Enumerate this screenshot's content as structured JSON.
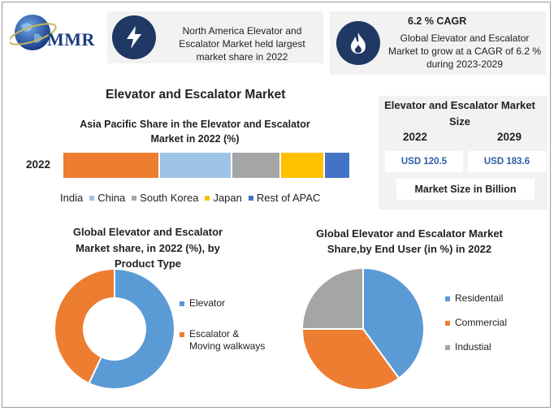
{
  "logo": {
    "brand": "MMR"
  },
  "cards": {
    "share": {
      "text": "North America Elevator and Escalator Market held largest market share in 2022"
    },
    "cagr": {
      "heading": "6.2 % CAGR",
      "text": "Global Elevator and Escalator Market to grow at a CAGR of 6.2 % during 2023-2029"
    }
  },
  "main_title": "Elevator and Escalator Market",
  "market_size": {
    "title": "Elevator and Escalator Market Size",
    "year1": "2022",
    "year2": "2029",
    "value1": "USD 120.5",
    "value2": "USD 183.6",
    "unit": "Market Size in Billion"
  },
  "colors": {
    "India": "#ed7d31",
    "China": "#9dc3e6",
    "South Korea": "#a5a5a5",
    "Japan": "#ffc000",
    "Rest of APAC": "#4472c4",
    "Elevator": "#5b9bd5",
    "Escalator": "#ed7d31",
    "Industial": "#a5a5a5"
  },
  "chart_data": [
    {
      "type": "bar",
      "orientation": "horizontal-stacked",
      "title": "Asia Pacific Share in the Elevator and Escalator Market in 2022 (%)",
      "categories": [
        "2022"
      ],
      "series": [
        {
          "name": "India",
          "values": [
            33.5
          ]
        },
        {
          "name": "China",
          "values": [
            25
          ]
        },
        {
          "name": "South Korea",
          "values": [
            17
          ]
        },
        {
          "name": "Japan",
          "values": [
            15
          ]
        },
        {
          "name": "Rest of APAC",
          "values": [
            8.5
          ]
        }
      ],
      "legend": "bottom"
    },
    {
      "type": "pie",
      "style": "donut",
      "title": "Global Elevator and Escalator Market share, in 2022 (%), by Product Type",
      "labels": [
        "Elevator",
        "Escalator & Moving walkways"
      ],
      "values": [
        57,
        43
      ],
      "legend": "right"
    },
    {
      "type": "pie",
      "title": "Global Elevator and Escalator Market Share,by End User (in %) in 2022",
      "labels": [
        "Residentail",
        "Commercial",
        "Industial"
      ],
      "values": [
        40,
        35,
        25
      ],
      "legend": "right"
    }
  ]
}
